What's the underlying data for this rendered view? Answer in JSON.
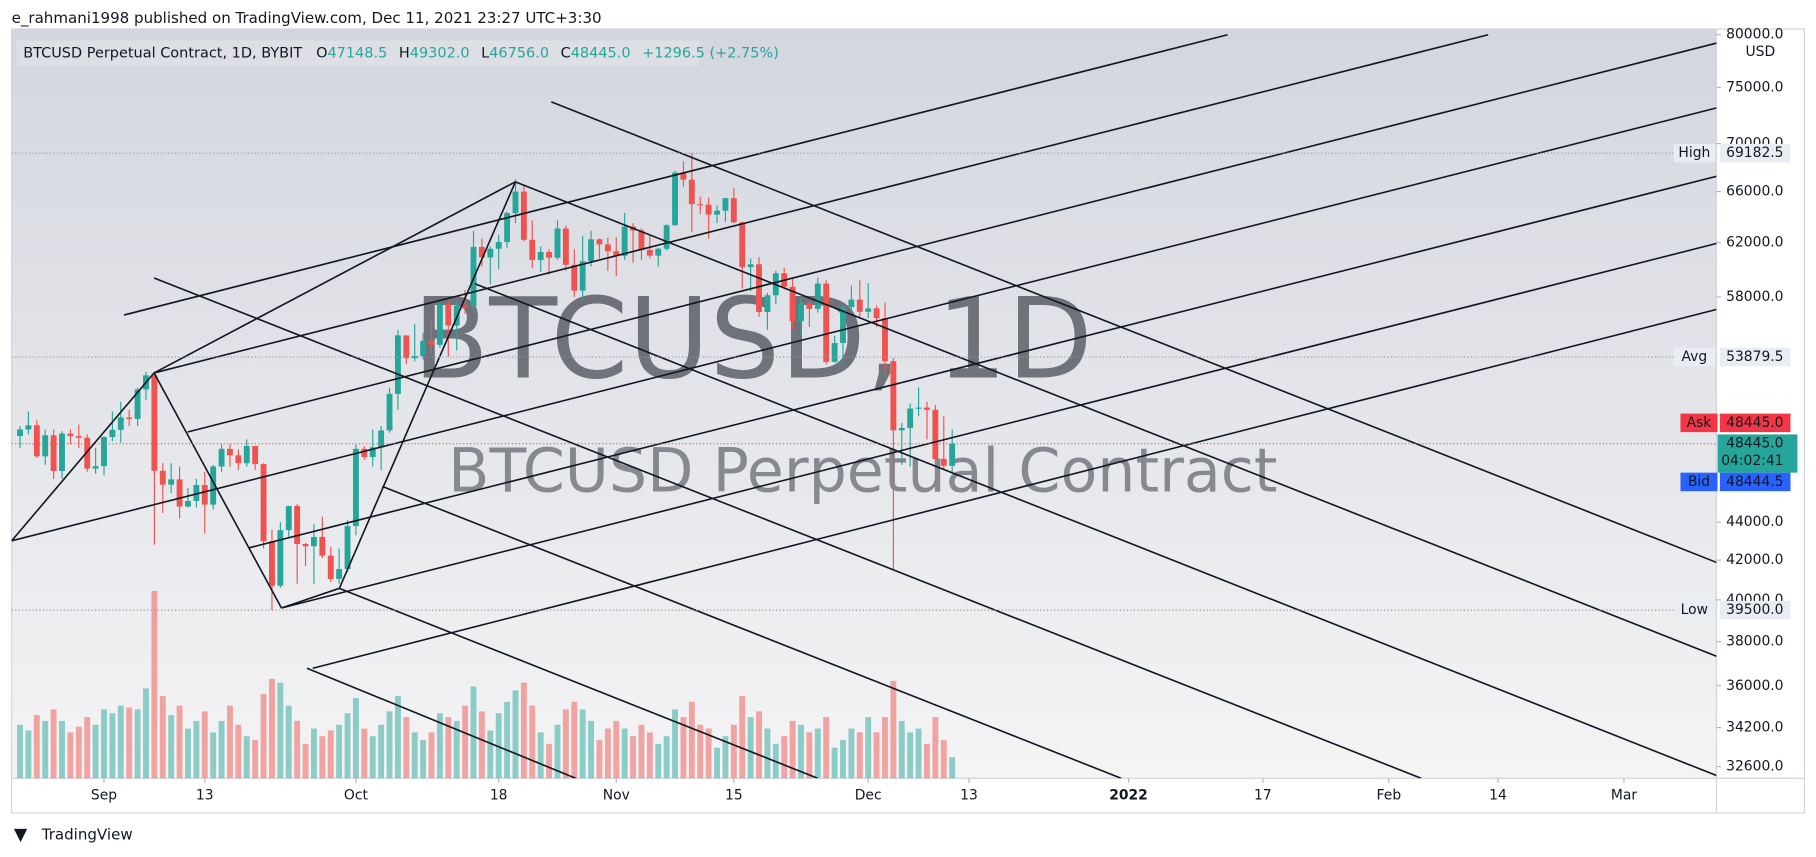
{
  "header": "e_rahmani1998 published on TradingView.com, Dec 11, 2021 23:27 UTC+3:30",
  "footer": "TradingView",
  "chart_data": {
    "type": "candlestick",
    "legend": {
      "title": "BTCUSD Perpetual Contract, 1D, BYBIT",
      "o_label": "O",
      "o": "47148.5",
      "h_label": "H",
      "h": "49302.0",
      "l_label": "L",
      "l": "46756.0",
      "c_label": "C",
      "c": "48445.0",
      "change": "+1296.5 (+2.75%)"
    },
    "watermark": [
      "BTCUSD, 1D",
      "BTCUSD Perpetual Contract"
    ],
    "currency": "USD",
    "x": [
      "2021-08-22",
      "2021-08-23",
      "2021-08-24",
      "2021-08-25",
      "2021-08-26",
      "2021-08-27",
      "2021-08-28",
      "2021-08-29",
      "2021-08-30",
      "2021-08-31",
      "2021-09-01",
      "2021-09-02",
      "2021-09-03",
      "2021-09-04",
      "2021-09-05",
      "2021-09-06",
      "2021-09-07",
      "2021-09-08",
      "2021-09-09",
      "2021-09-10",
      "2021-09-11",
      "2021-09-12",
      "2021-09-13",
      "2021-09-14",
      "2021-09-15",
      "2021-09-16",
      "2021-09-17",
      "2021-09-18",
      "2021-09-19",
      "2021-09-20",
      "2021-09-21",
      "2021-09-22",
      "2021-09-23",
      "2021-09-24",
      "2021-09-25",
      "2021-09-26",
      "2021-09-27",
      "2021-09-28",
      "2021-09-29",
      "2021-09-30",
      "2021-10-01",
      "2021-10-02",
      "2021-10-03",
      "2021-10-04",
      "2021-10-05",
      "2021-10-06",
      "2021-10-07",
      "2021-10-08",
      "2021-10-09",
      "2021-10-10",
      "2021-10-11",
      "2021-10-12",
      "2021-10-13",
      "2021-10-14",
      "2021-10-15",
      "2021-10-16",
      "2021-10-17",
      "2021-10-18",
      "2021-10-19",
      "2021-10-20",
      "2021-10-21",
      "2021-10-22",
      "2021-10-23",
      "2021-10-24",
      "2021-10-25",
      "2021-10-26",
      "2021-10-27",
      "2021-10-28",
      "2021-10-29",
      "2021-10-30",
      "2021-10-31",
      "2021-11-01",
      "2021-11-02",
      "2021-11-03",
      "2021-11-04",
      "2021-11-05",
      "2021-11-06",
      "2021-11-07",
      "2021-11-08",
      "2021-11-09",
      "2021-11-10",
      "2021-11-11",
      "2021-11-12",
      "2021-11-13",
      "2021-11-14",
      "2021-11-15",
      "2021-11-16",
      "2021-11-17",
      "2021-11-18",
      "2021-11-19",
      "2021-11-20",
      "2021-11-21",
      "2021-11-22",
      "2021-11-23",
      "2021-11-24",
      "2021-11-25",
      "2021-11-26",
      "2021-11-27",
      "2021-11-28",
      "2021-11-29",
      "2021-11-30",
      "2021-12-01",
      "2021-12-02",
      "2021-12-03",
      "2021-12-04",
      "2021-12-05",
      "2021-12-06",
      "2021-12-07",
      "2021-12-08",
      "2021-12-09",
      "2021-12-10",
      "2021-12-11"
    ],
    "open": [
      48900,
      49300,
      49550,
      47700,
      48950,
      46850,
      49050,
      48900,
      48800,
      46990,
      47130,
      48840,
      49280,
      50030,
      49940,
      51780,
      52680,
      46860,
      46070,
      46370,
      44850,
      45160,
      46050,
      44960,
      47110,
      48140,
      47760,
      47300,
      48310,
      47250,
      42980,
      40700,
      43570,
      44880,
      42840,
      42720,
      43210,
      42230,
      41040,
      41540,
      43790,
      48140,
      47660,
      48230,
      49240,
      51500,
      55330,
      53800,
      53940,
      54960,
      54690,
      57480,
      56000,
      57370,
      57350,
      61670,
      60880,
      61530,
      62040,
      64280,
      66000,
      62210,
      60690,
      61290,
      60860,
      63080,
      60330,
      58450,
      60590,
      62250,
      61860,
      61340,
      61000,
      63230,
      62930,
      61440,
      61010,
      61530,
      63330,
      67560,
      66970,
      64990,
      64950,
      64160,
      64470,
      65470,
      63560,
      60160,
      60370,
      56940,
      58120,
      59710,
      58730,
      56300,
      57570,
      57160,
      58960,
      53560,
      54810,
      57280,
      57810,
      56950,
      57190,
      56510,
      53600,
      49250,
      49390,
      50580,
      50640,
      50500,
      47550,
      47148.5
    ],
    "high": [
      49500,
      50400,
      49850,
      49300,
      49300,
      49200,
      49300,
      49600,
      49000,
      48200,
      48900,
      50400,
      51000,
      50500,
      51900,
      52900,
      52900,
      47300,
      47300,
      47100,
      45900,
      46400,
      46800,
      47200,
      48400,
      48400,
      48100,
      48700,
      48300,
      47300,
      43600,
      44000,
      44900,
      45000,
      42900,
      43900,
      44300,
      42700,
      42600,
      44100,
      48400,
      48300,
      49300,
      49500,
      51900,
      55700,
      55300,
      56100,
      55500,
      56400,
      57800,
      57700,
      57700,
      58500,
      62900,
      62300,
      61700,
      62600,
      64400,
      67000,
      66600,
      63700,
      61700,
      61500,
      63700,
      63300,
      61500,
      62500,
      62900,
      62300,
      62400,
      62400,
      64300,
      63500,
      63100,
      62600,
      61600,
      63400,
      67700,
      68500,
      69182.5,
      65600,
      65500,
      64900,
      65500,
      66300,
      63600,
      60800,
      60900,
      58300,
      59900,
      60100,
      59300,
      58000,
      57700,
      59400,
      59200,
      55300,
      57400,
      58800,
      59200,
      59000,
      57400,
      57600,
      53800,
      49700,
      50900,
      51900,
      51000,
      50800,
      50100,
      49302
    ],
    "low": [
      48200,
      49000,
      47600,
      47200,
      46400,
      46400,
      48400,
      48200,
      46800,
      46700,
      46600,
      48600,
      48500,
      49500,
      49500,
      51100,
      42800,
      44500,
      45600,
      44200,
      44800,
      44800,
      43400,
      44700,
      46800,
      47100,
      46900,
      47100,
      46900,
      42600,
      39500,
      40600,
      43200,
      40800,
      41700,
      40800,
      42100,
      40900,
      40800,
      41400,
      43300,
      47500,
      47100,
      46900,
      49100,
      50500,
      53400,
      53600,
      53700,
      54100,
      54500,
      53900,
      54300,
      56800,
      56900,
      60200,
      58900,
      60000,
      61600,
      63500,
      62100,
      60100,
      59800,
      59600,
      60700,
      59900,
      58000,
      57900,
      60200,
      60800,
      59900,
      59500,
      60700,
      60500,
      60700,
      60800,
      60200,
      61400,
      63300,
      66400,
      62800,
      64200,
      62300,
      63500,
      63600,
      63500,
      58600,
      58400,
      56600,
      55700,
      57500,
      58600,
      55700,
      55300,
      55900,
      56900,
      53400,
      53500,
      53300,
      56800,
      56500,
      56500,
      55900,
      52800,
      41500,
      47200,
      47100,
      50100,
      48700,
      47400,
      46900,
      46756
    ],
    "close": [
      49300,
      49550,
      47700,
      48950,
      46850,
      49050,
      48900,
      48800,
      46990,
      47130,
      48840,
      49280,
      50030,
      49940,
      51780,
      52680,
      46860,
      46070,
      46370,
      44850,
      45160,
      46050,
      44960,
      47110,
      48140,
      47760,
      47300,
      48310,
      47250,
      42980,
      40700,
      43570,
      44880,
      42840,
      42720,
      43210,
      42230,
      41040,
      41540,
      43790,
      48140,
      47660,
      48230,
      49240,
      51500,
      55330,
      53800,
      53940,
      54960,
      54690,
      57480,
      56000,
      57370,
      57350,
      61670,
      60880,
      61530,
      62040,
      64280,
      66000,
      62210,
      60690,
      61290,
      60860,
      63080,
      60330,
      58450,
      60590,
      62250,
      61860,
      61340,
      61000,
      63230,
      62930,
      61440,
      61010,
      61530,
      63330,
      67560,
      66970,
      64990,
      64950,
      64160,
      64470,
      65470,
      63560,
      60160,
      60370,
      56940,
      58120,
      59710,
      58730,
      56300,
      57570,
      57160,
      58960,
      53560,
      54810,
      57280,
      57810,
      56950,
      57190,
      56510,
      53600,
      49250,
      49390,
      50580,
      50640,
      50500,
      47550,
      47148.5,
      48445
    ],
    "volume": [
      28,
      25,
      33,
      30,
      36,
      30,
      24,
      27,
      32,
      28,
      36,
      34,
      38,
      37,
      36,
      47,
      98,
      43,
      33,
      38,
      26,
      30,
      35,
      24,
      30,
      38,
      28,
      22,
      20,
      44,
      52,
      50,
      38,
      30,
      18,
      26,
      22,
      25,
      28,
      34,
      42,
      26,
      22,
      28,
      35,
      43,
      32,
      24,
      20,
      24,
      34,
      32,
      30,
      38,
      48,
      35,
      25,
      34,
      40,
      46,
      50,
      38,
      24,
      18,
      28,
      36,
      40,
      36,
      30,
      20,
      26,
      30,
      26,
      22,
      28,
      24,
      18,
      22,
      36,
      32,
      40,
      28,
      26,
      16,
      22,
      28,
      43,
      32,
      35,
      26,
      18,
      22,
      30,
      28,
      24,
      26,
      32,
      16,
      20,
      26,
      24,
      32,
      24,
      32,
      51,
      30,
      24,
      26,
      18,
      32,
      20,
      11
    ],
    "volume_lim": [
      0,
      100
    ],
    "up_color": "#26a69a",
    "down_color": "#ef5350",
    "log": true,
    "ylim": [
      32140,
      80570
    ],
    "yticks": [
      {
        "value": 80000,
        "label": "80000.0"
      },
      {
        "value": 75000,
        "label": "75000.0"
      },
      {
        "value": 70000,
        "label": "70000.0"
      },
      {
        "value": 66000,
        "label": "66000.0"
      },
      {
        "value": 62000,
        "label": "62000.0"
      },
      {
        "value": 58000,
        "label": "58000.0"
      },
      {
        "value": 44000,
        "label": "44000.0"
      },
      {
        "value": 42000,
        "label": "42000.0"
      },
      {
        "value": 40000,
        "label": "40000.0"
      },
      {
        "value": 38000,
        "label": "38000.0"
      },
      {
        "value": 36000,
        "label": "36000.0"
      },
      {
        "value": 34200,
        "label": "34200.0"
      },
      {
        "value": 32600,
        "label": "32600.0"
      }
    ],
    "xlim": [
      "2021-08-21",
      "2022-03-12"
    ],
    "xticks": [
      {
        "value": "2021-09-01",
        "label": "Sep"
      },
      {
        "value": "2021-09-13",
        "label": "13"
      },
      {
        "value": "2021-10-01",
        "label": "Oct"
      },
      {
        "value": "2021-10-18",
        "label": "18"
      },
      {
        "value": "2021-11-01",
        "label": "Nov"
      },
      {
        "value": "2021-11-15",
        "label": "15"
      },
      {
        "value": "2021-12-01",
        "label": "Dec"
      },
      {
        "value": "2021-12-13",
        "label": "13"
      },
      {
        "value": "2022-01-01",
        "label": "2022"
      },
      {
        "value": "2022-01-17",
        "label": "17"
      },
      {
        "value": "2022-02-01",
        "label": "Feb"
      },
      {
        "value": "2022-02-14",
        "label": "14"
      },
      {
        "value": "2022-03-01",
        "label": "Mar"
      }
    ],
    "price_lines": [
      {
        "name": "High",
        "value": 69182.5,
        "label": "69182.5"
      },
      {
        "name": "Avg",
        "value": 53879.5,
        "label": "53879.5"
      },
      {
        "name": "Low",
        "value": 39500,
        "label": "39500.0"
      }
    ],
    "ask": {
      "name": "Ask",
      "value": 48445,
      "label": "48445.0"
    },
    "last": {
      "value": 48445,
      "label": "48445.0",
      "countdown": "04:02:41"
    },
    "bid": {
      "name": "Bid",
      "value": 48444.5,
      "label": "48444.5"
    }
  }
}
